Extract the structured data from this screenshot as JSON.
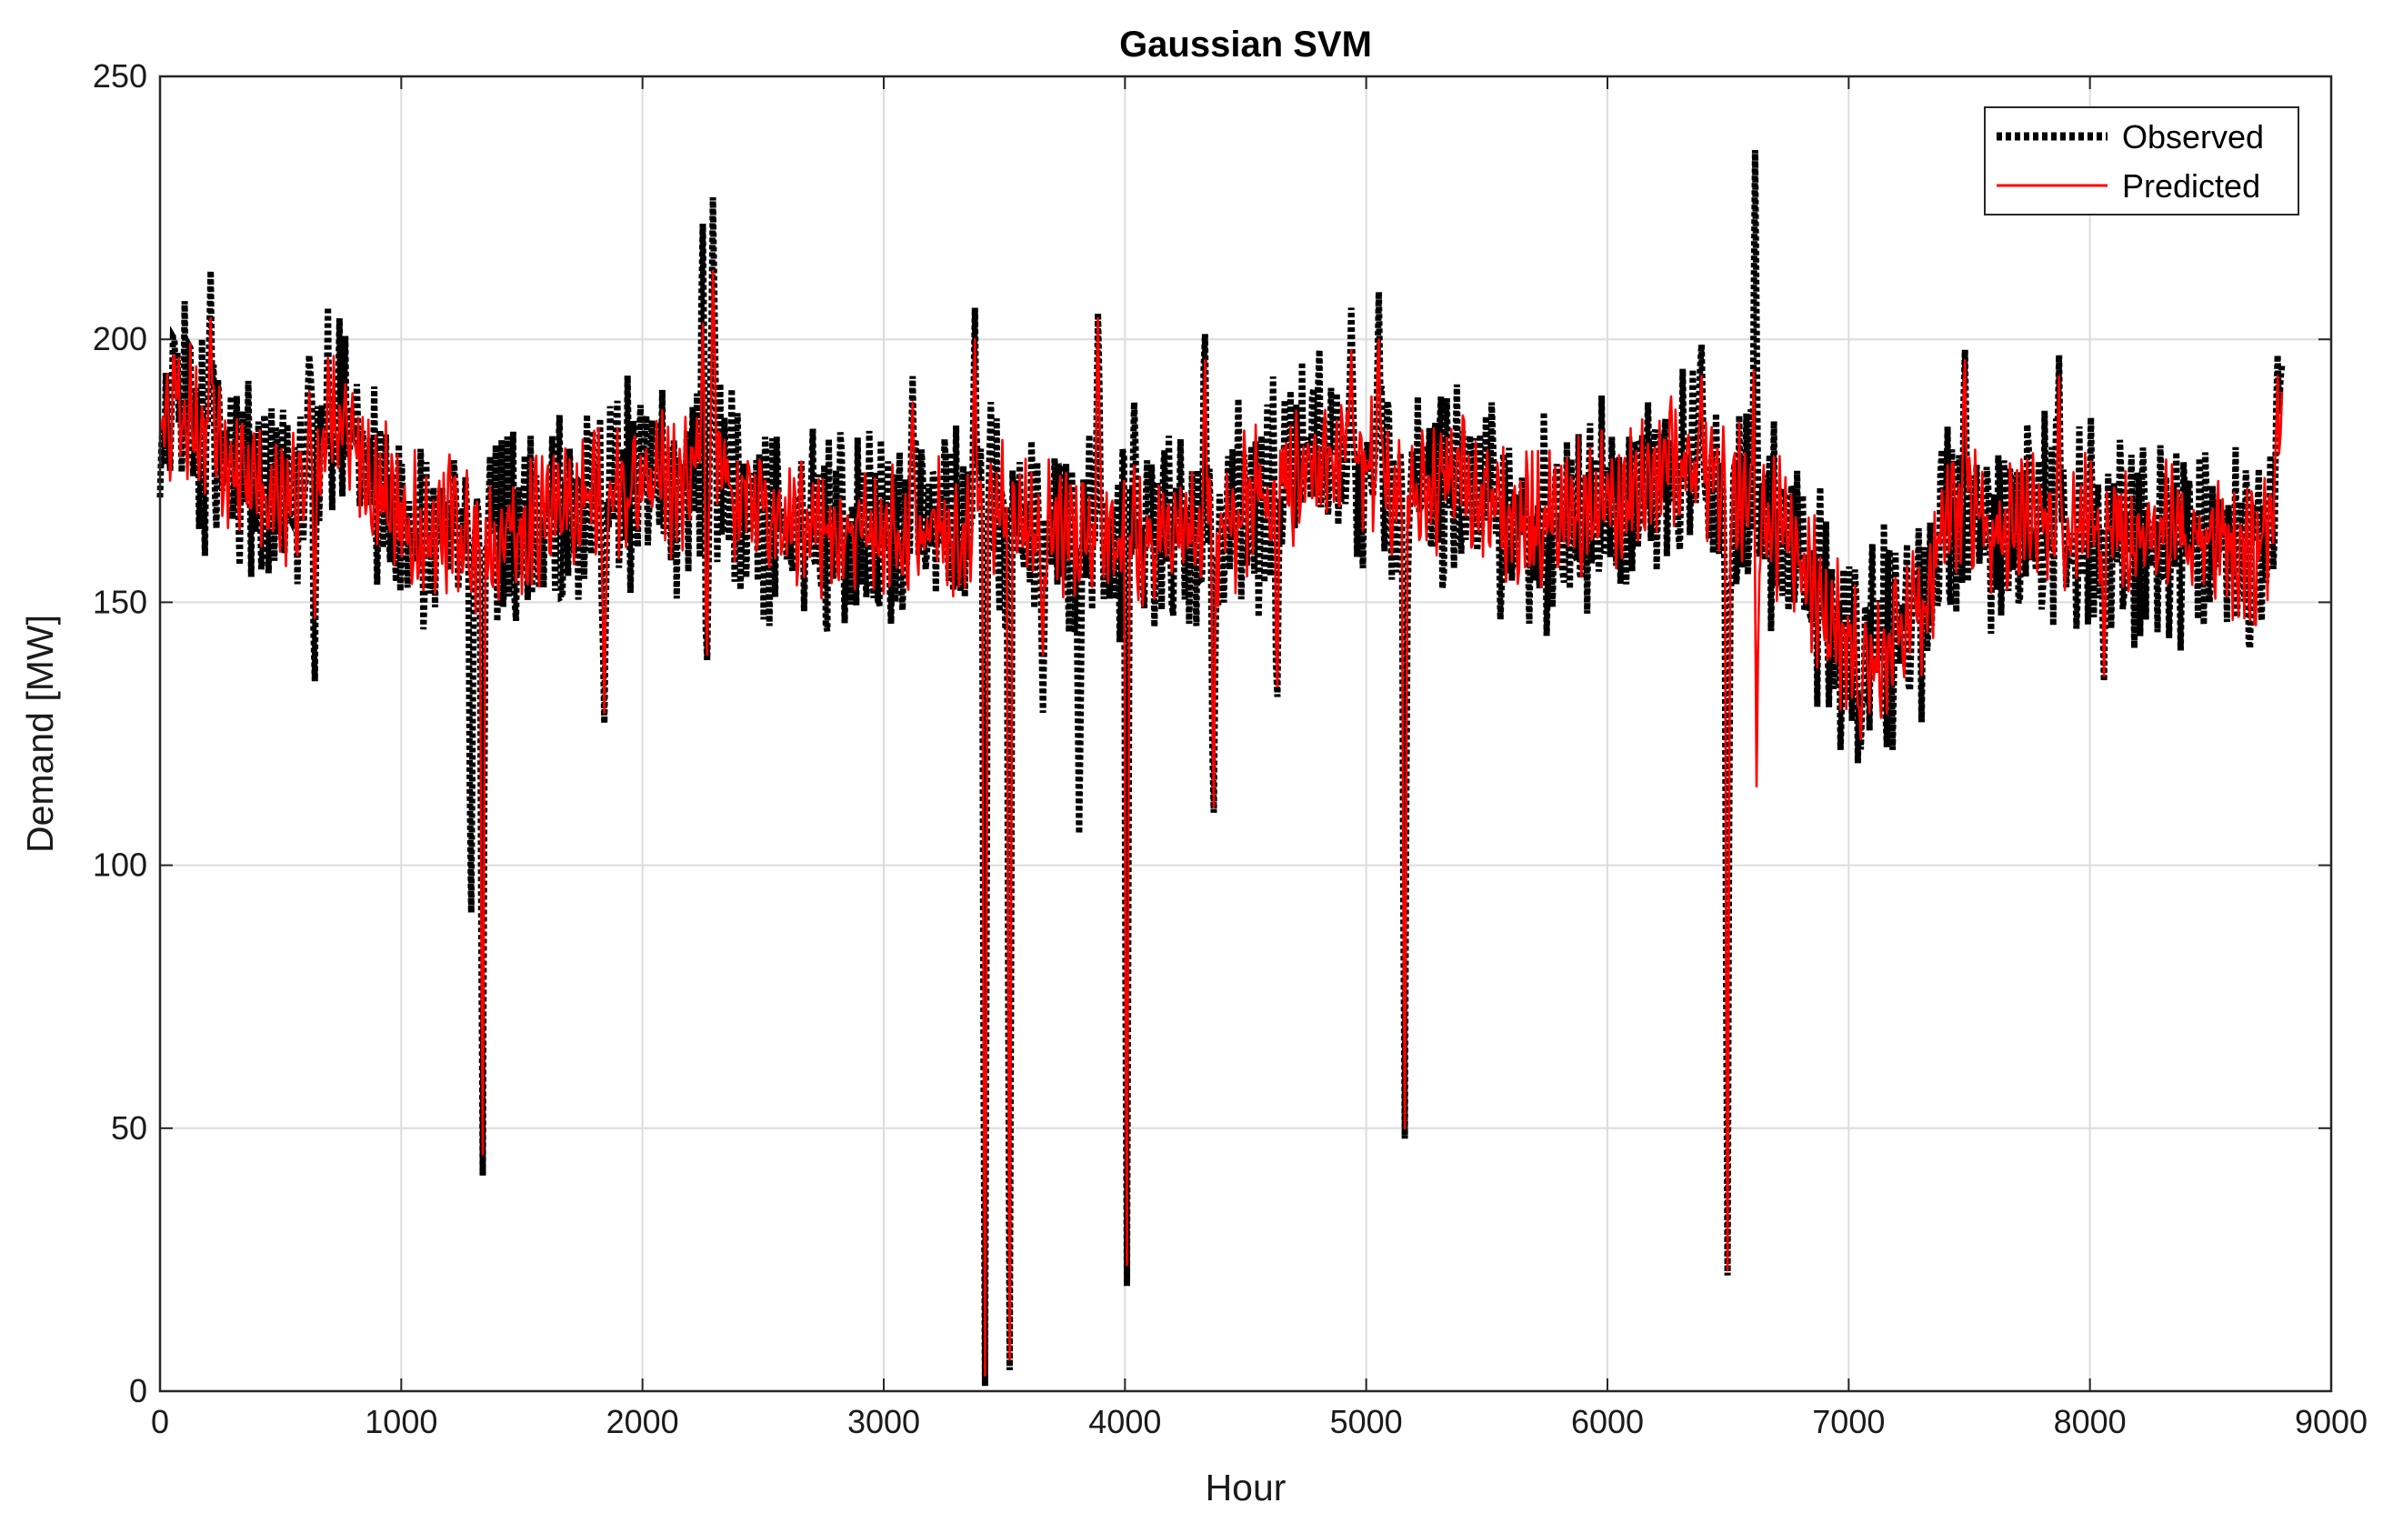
{
  "chart_data": {
    "type": "line",
    "title": "Gaussian SVM",
    "xlabel": "Hour",
    "ylabel": "Demand [MW]",
    "xlim": [
      0,
      9000
    ],
    "ylim": [
      0,
      250
    ],
    "xticks": [
      0,
      1000,
      2000,
      3000,
      4000,
      5000,
      6000,
      7000,
      8000,
      9000
    ],
    "yticks": [
      0,
      50,
      100,
      150,
      200,
      250
    ],
    "xtick_labels": [
      "0",
      "1000",
      "2000",
      "3000",
      "4000",
      "5000",
      "6000",
      "7000",
      "8000",
      "9000"
    ],
    "ytick_labels": [
      "0",
      "50",
      "100",
      "150",
      "200",
      "250"
    ],
    "grid": true,
    "legend_position": "top-right",
    "x_end": 8800,
    "baseline": [
      [
        0,
        182
      ],
      [
        100,
        186
      ],
      [
        200,
        180
      ],
      [
        300,
        174
      ],
      [
        400,
        172
      ],
      [
        500,
        168
      ],
      [
        600,
        172
      ],
      [
        700,
        186
      ],
      [
        800,
        180
      ],
      [
        900,
        172
      ],
      [
        1000,
        168
      ],
      [
        1100,
        164
      ],
      [
        1200,
        166
      ],
      [
        1300,
        162
      ],
      [
        1400,
        162
      ],
      [
        1500,
        164
      ],
      [
        1600,
        166
      ],
      [
        1700,
        168
      ],
      [
        1800,
        170
      ],
      [
        1900,
        172
      ],
      [
        2000,
        172
      ],
      [
        2100,
        172
      ],
      [
        2200,
        174
      ],
      [
        2300,
        178
      ],
      [
        2400,
        170
      ],
      [
        2500,
        168
      ],
      [
        2600,
        164
      ],
      [
        2700,
        162
      ],
      [
        2800,
        164
      ],
      [
        2900,
        162
      ],
      [
        3000,
        164
      ],
      [
        3100,
        162
      ],
      [
        3200,
        164
      ],
      [
        3300,
        162
      ],
      [
        3400,
        166
      ],
      [
        3500,
        166
      ],
      [
        3600,
        164
      ],
      [
        3700,
        164
      ],
      [
        3800,
        162
      ],
      [
        3900,
        164
      ],
      [
        4000,
        160
      ],
      [
        4100,
        162
      ],
      [
        4200,
        164
      ],
      [
        4300,
        162
      ],
      [
        4400,
        164
      ],
      [
        4500,
        168
      ],
      [
        4600,
        170
      ],
      [
        4700,
        174
      ],
      [
        4800,
        176
      ],
      [
        4900,
        178
      ],
      [
        5000,
        176
      ],
      [
        5100,
        172
      ],
      [
        5200,
        170
      ],
      [
        5300,
        172
      ],
      [
        5400,
        174
      ],
      [
        5500,
        170
      ],
      [
        5600,
        166
      ],
      [
        5700,
        164
      ],
      [
        5800,
        166
      ],
      [
        5900,
        168
      ],
      [
        6000,
        168
      ],
      [
        6100,
        170
      ],
      [
        6200,
        176
      ],
      [
        6300,
        176
      ],
      [
        6400,
        174
      ],
      [
        6500,
        172
      ],
      [
        6600,
        170
      ],
      [
        6700,
        164
      ],
      [
        6800,
        160
      ],
      [
        6900,
        148
      ],
      [
        7000,
        140
      ],
      [
        7100,
        142
      ],
      [
        7200,
        144
      ],
      [
        7300,
        148
      ],
      [
        7400,
        166
      ],
      [
        7500,
        168
      ],
      [
        7600,
        162
      ],
      [
        7700,
        164
      ],
      [
        7800,
        166
      ],
      [
        7900,
        162
      ],
      [
        8000,
        166
      ],
      [
        8100,
        164
      ],
      [
        8200,
        162
      ],
      [
        8300,
        164
      ],
      [
        8400,
        162
      ],
      [
        8500,
        162
      ],
      [
        8600,
        160
      ],
      [
        8700,
        158
      ],
      [
        8800,
        170
      ]
    ],
    "series": [
      {
        "name": "Observed",
        "color": "#000000",
        "style": "dotted",
        "features": [
          {
            "x": 60,
            "y": 200
          },
          {
            "x": 210,
            "y": 213
          },
          {
            "x": 620,
            "y": 197
          },
          {
            "x": 640,
            "y": 135
          },
          {
            "x": 1290,
            "y": 91
          },
          {
            "x": 1340,
            "y": 41
          },
          {
            "x": 1840,
            "y": 127
          },
          {
            "x": 2250,
            "y": 222
          },
          {
            "x": 2290,
            "y": 227
          },
          {
            "x": 2270,
            "y": 139
          },
          {
            "x": 3120,
            "y": 193
          },
          {
            "x": 3380,
            "y": 206
          },
          {
            "x": 3420,
            "y": 1
          },
          {
            "x": 3520,
            "y": 4
          },
          {
            "x": 3660,
            "y": 129
          },
          {
            "x": 3810,
            "y": 106
          },
          {
            "x": 3890,
            "y": 205
          },
          {
            "x": 4010,
            "y": 20
          },
          {
            "x": 4040,
            "y": 188
          },
          {
            "x": 4330,
            "y": 201
          },
          {
            "x": 4370,
            "y": 110
          },
          {
            "x": 4630,
            "y": 132
          },
          {
            "x": 4940,
            "y": 206
          },
          {
            "x": 5050,
            "y": 209
          },
          {
            "x": 5160,
            "y": 48
          },
          {
            "x": 6390,
            "y": 199
          },
          {
            "x": 6500,
            "y": 22
          },
          {
            "x": 6610,
            "y": 236
          },
          {
            "x": 7050,
            "y": 122
          },
          {
            "x": 7480,
            "y": 198
          },
          {
            "x": 7870,
            "y": 197
          },
          {
            "x": 8060,
            "y": 135
          },
          {
            "x": 8780,
            "y": 197
          },
          {
            "x": 8800,
            "y": 195
          }
        ]
      },
      {
        "name": "Predicted",
        "color": "#ff0000",
        "style": "solid",
        "features": [
          {
            "x": 60,
            "y": 197
          },
          {
            "x": 210,
            "y": 204
          },
          {
            "x": 620,
            "y": 190
          },
          {
            "x": 640,
            "y": 147
          },
          {
            "x": 1290,
            "y": 152
          },
          {
            "x": 1340,
            "y": 45
          },
          {
            "x": 1840,
            "y": 129
          },
          {
            "x": 2250,
            "y": 203
          },
          {
            "x": 2290,
            "y": 213
          },
          {
            "x": 2270,
            "y": 140
          },
          {
            "x": 3120,
            "y": 188
          },
          {
            "x": 3380,
            "y": 200
          },
          {
            "x": 3420,
            "y": 3
          },
          {
            "x": 3520,
            "y": 6
          },
          {
            "x": 3660,
            "y": 140
          },
          {
            "x": 3810,
            "y": 154
          },
          {
            "x": 3890,
            "y": 204
          },
          {
            "x": 4010,
            "y": 24
          },
          {
            "x": 4040,
            "y": 176
          },
          {
            "x": 4330,
            "y": 196
          },
          {
            "x": 4370,
            "y": 111
          },
          {
            "x": 4630,
            "y": 134
          },
          {
            "x": 4940,
            "y": 198
          },
          {
            "x": 5050,
            "y": 200
          },
          {
            "x": 5160,
            "y": 50
          },
          {
            "x": 6390,
            "y": 193
          },
          {
            "x": 6500,
            "y": 23
          },
          {
            "x": 6610,
            "y": 211
          },
          {
            "x": 6620,
            "y": 115
          },
          {
            "x": 7050,
            "y": 124
          },
          {
            "x": 7480,
            "y": 196
          },
          {
            "x": 7870,
            "y": 193
          },
          {
            "x": 8060,
            "y": 136
          },
          {
            "x": 8780,
            "y": 193
          },
          {
            "x": 8800,
            "y": 190
          }
        ]
      }
    ]
  }
}
